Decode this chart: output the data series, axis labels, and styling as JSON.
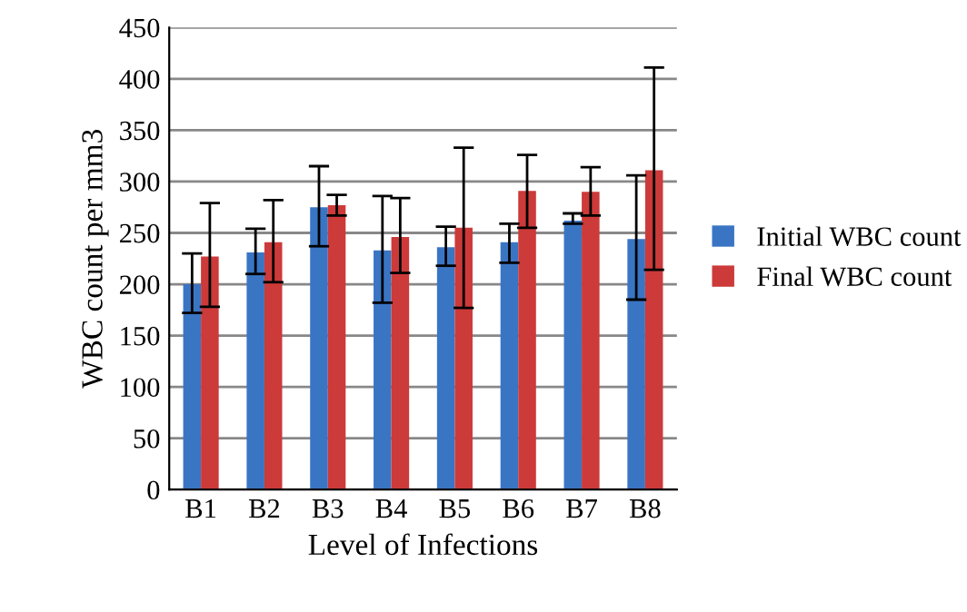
{
  "chart_data": {
    "type": "bar",
    "xlabel": "Level of Infections",
    "ylabel": "WBC count per mm3",
    "categories": [
      "B1",
      "B2",
      "B3",
      "B4",
      "B5",
      "B6",
      "B7",
      "B8"
    ],
    "series": [
      {
        "name": "Initial WBC count",
        "color": "#3a75c4",
        "values": [
          200,
          231,
          275,
          233,
          236,
          241,
          262,
          244
        ],
        "errors": [
          [
            172,
            230
          ],
          [
            210,
            254
          ],
          [
            237,
            315
          ],
          [
            182,
            286
          ],
          [
            218,
            256
          ],
          [
            221,
            259
          ],
          [
            259,
            269
          ],
          [
            185,
            306
          ]
        ]
      },
      {
        "name": "Final WBC count",
        "color": "#cc3a3a",
        "values": [
          227,
          241,
          277,
          246,
          255,
          291,
          290,
          311
        ],
        "errors": [
          [
            178,
            279
          ],
          [
            202,
            282
          ],
          [
            267,
            287
          ],
          [
            211,
            284
          ],
          [
            177,
            333
          ],
          [
            255,
            326
          ],
          [
            267,
            314
          ],
          [
            214,
            411
          ]
        ]
      }
    ],
    "ylim": [
      0,
      450
    ],
    "yticks": [
      0,
      50,
      100,
      150,
      200,
      250,
      300,
      350,
      400,
      450
    ],
    "grid": "y",
    "legend": "right"
  }
}
